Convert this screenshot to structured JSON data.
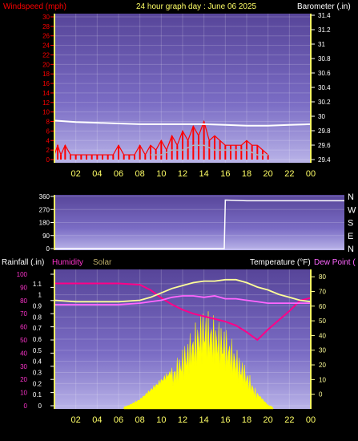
{
  "header": {
    "left_title": "Windspeed (mph)",
    "center_title": "24 hour graph day : June 06 2025",
    "right_title": "Barometer (.in)"
  },
  "bottom_header": {
    "rainfall_label": "Rainfall (.in)",
    "humidity_label": "Humidity",
    "solar_label": "Solar",
    "temperature_label": "Temperature (°F)",
    "dewpoint_label": "Dew Point ("
  },
  "colors": {
    "background": "#000000",
    "plot_top": "#5a4aa8",
    "plot_bottom": "#b8b2e6",
    "axis_yellow": "#ffff66",
    "wind_red": "#ff0000",
    "gust_grey": "#b0b0c0",
    "barometer_white": "#ffffff",
    "humidity_magenta": "#ff33cc",
    "solar_yellow": "#ffff00",
    "temperature_yellow": "#ffff99",
    "dewpoint_pink": "#ff66ff",
    "rain_blue": "#3030ff"
  },
  "x_ticks": [
    "02",
    "04",
    "06",
    "08",
    "10",
    "12",
    "14",
    "16",
    "18",
    "20",
    "22",
    "00"
  ],
  "chart_data": [
    {
      "type": "line",
      "title": "24 hour graph day : June 06 2025",
      "xlabel": "",
      "ylabel": "Windspeed (mph)",
      "y2label": "Barometer (.in)",
      "ylim": [
        0,
        30
      ],
      "y2lim": [
        29.4,
        31.4
      ],
      "y_ticks": [
        "0",
        "2",
        "4",
        "6",
        "8",
        "10",
        "12",
        "14",
        "16",
        "18",
        "20",
        "22",
        "24",
        "26",
        "28",
        "30"
      ],
      "y2_ticks": [
        "29.4",
        "29.6",
        "29.8",
        "30",
        "30.2",
        "30.4",
        "30.6",
        "30.8",
        "31",
        "31.2",
        "31.4"
      ],
      "grid": true,
      "series": [
        {
          "name": "Windspeed",
          "axis": "left",
          "x": [
            0,
            0.3,
            0.6,
            1,
            1.5,
            2,
            2.5,
            3,
            3.5,
            4,
            4.5,
            5,
            5.5,
            6,
            6.5,
            7,
            7.5,
            8,
            8.5,
            9,
            9.5,
            10,
            10.5,
            11,
            11.5,
            12,
            12.5,
            13,
            13.5,
            14,
            14.5,
            15,
            15.5,
            16,
            16.5,
            17,
            17.5,
            18,
            18.5,
            19,
            19.5,
            20
          ],
          "values": [
            1,
            3,
            1,
            3,
            1,
            1,
            1,
            1,
            1,
            1,
            1,
            1,
            1,
            3,
            1,
            1,
            1,
            3,
            1,
            3,
            2,
            4,
            2,
            5,
            3,
            6,
            4,
            7,
            5,
            8,
            4,
            5,
            4,
            3,
            3,
            3,
            3,
            4,
            3,
            3,
            2,
            1
          ]
        },
        {
          "name": "Gust",
          "axis": "left",
          "x": [
            9,
            10,
            11,
            12,
            13,
            14,
            15,
            16,
            17,
            18,
            19,
            20
          ],
          "values": [
            1,
            1,
            2,
            2,
            3,
            3,
            2,
            2,
            2,
            2,
            1,
            1
          ]
        },
        {
          "name": "Barometer",
          "axis": "right",
          "x": [
            0,
            2,
            4,
            6,
            8,
            10,
            12,
            14,
            16,
            18,
            20,
            22,
            24
          ],
          "values": [
            29.94,
            29.92,
            29.91,
            29.9,
            29.89,
            29.89,
            29.89,
            29.89,
            29.88,
            29.87,
            29.87,
            29.88,
            29.89
          ]
        }
      ]
    },
    {
      "type": "line",
      "ylabel": "",
      "ylim": [
        0,
        360
      ],
      "y_ticks": [
        "0",
        "90",
        "180",
        "270",
        "360"
      ],
      "right_labels": [
        "N",
        "W",
        "S",
        "E",
        "N"
      ],
      "grid": true,
      "series": [
        {
          "name": "Wind direction",
          "x": [
            0,
            4,
            8,
            12,
            15.9,
            16,
            18,
            20,
            22,
            24
          ],
          "values": [
            0,
            0,
            0,
            0,
            0,
            335,
            330,
            330,
            330,
            330
          ]
        }
      ]
    },
    {
      "type": "area",
      "ylabel": "Rainfall (.in)",
      "ylim": [
        0,
        1.2
      ],
      "y_ticks": [
        "0",
        "0.1",
        "0.2",
        "0.3",
        "0.4",
        "0.5",
        "0.6",
        "0.7",
        "0.8",
        "0.9",
        "1",
        "1.1"
      ],
      "humidity_ticks": [
        "0",
        "10",
        "20",
        "30",
        "40",
        "50",
        "60",
        "70",
        "80",
        "90",
        "100"
      ],
      "y2label": "Temperature (°F)",
      "y2lim": [
        -10,
        85
      ],
      "y2_ticks": [
        "0",
        "10",
        "20",
        "30",
        "40",
        "50",
        "60",
        "70",
        "80"
      ],
      "grid": true,
      "series": [
        {
          "name": "Humidity",
          "axis": "humidity",
          "x": [
            0,
            2,
            4,
            6,
            8,
            9,
            10,
            11,
            12,
            13,
            14,
            15,
            16,
            17,
            18,
            19,
            20,
            21,
            22,
            23,
            24
          ],
          "values": [
            93,
            93,
            93,
            93,
            92,
            88,
            82,
            77,
            73,
            70,
            68,
            66,
            64,
            61,
            56,
            50,
            58,
            65,
            72,
            80,
            82
          ]
        },
        {
          "name": "Solar",
          "axis": "solar",
          "x": [
            0,
            6,
            7,
            8,
            9,
            10,
            11,
            12,
            13,
            14,
            15,
            16,
            17,
            18,
            19,
            20,
            21,
            24
          ],
          "values": [
            0,
            0,
            0.02,
            0.05,
            0.1,
            0.15,
            0.2,
            0.3,
            0.4,
            0.5,
            0.45,
            0.4,
            0.3,
            0.2,
            0.08,
            0.02,
            0,
            0
          ]
        },
        {
          "name": "Temperature",
          "axis": "right",
          "x": [
            0,
            2,
            4,
            6,
            8,
            9,
            10,
            11,
            12,
            13,
            14,
            15,
            16,
            17,
            18,
            19,
            20,
            21,
            22,
            23,
            24
          ],
          "values": [
            64,
            63,
            63,
            63,
            64,
            66,
            69,
            72,
            74,
            76,
            77,
            77,
            78,
            78,
            76,
            73,
            71,
            68,
            66,
            64,
            63
          ]
        },
        {
          "name": "Dew Point",
          "axis": "right",
          "x": [
            0,
            2,
            4,
            6,
            8,
            9,
            10,
            11,
            12,
            13,
            14,
            15,
            16,
            17,
            18,
            19,
            20,
            21,
            22,
            23,
            24
          ],
          "values": [
            61,
            61,
            61,
            61,
            62,
            63,
            64,
            66,
            67,
            67,
            66,
            67,
            65,
            65,
            64,
            63,
            62,
            62,
            62,
            62,
            62
          ]
        }
      ]
    }
  ]
}
